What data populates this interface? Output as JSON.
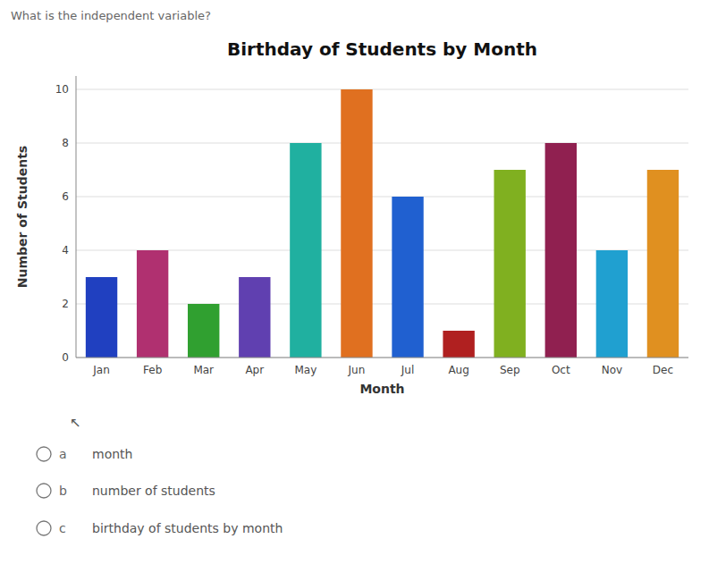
{
  "chart_data": {
    "type": "bar",
    "title": "Birthday of Students by Month",
    "xlabel": "Month",
    "ylabel": "Number of Students",
    "categories": [
      "Jan",
      "Feb",
      "Mar",
      "Apr",
      "May",
      "Jun",
      "Jul",
      "Aug",
      "Sep",
      "Oct",
      "Nov",
      "Dec"
    ],
    "values": [
      3,
      4,
      2,
      3,
      8,
      10,
      6,
      1,
      7,
      8,
      4,
      7
    ],
    "colors": [
      "#2040c0",
      "#b03070",
      "#30a030",
      "#6040b0",
      "#20b0a0",
      "#e07020",
      "#2060d0",
      "#b02020",
      "#80b020",
      "#902050",
      "#20a0d0",
      "#e09020"
    ],
    "ylim": [
      0,
      10.5
    ],
    "yticks": [
      0,
      2,
      4,
      6,
      8,
      10
    ],
    "grid": true,
    "annotations": [
      "What is the independent variable?",
      "↖"
    ],
    "choices": [
      {
        "label": "a",
        "text": "month"
      },
      {
        "label": "b",
        "text": "number of students"
      },
      {
        "label": "c",
        "text": "birthday of students by month"
      }
    ]
  }
}
